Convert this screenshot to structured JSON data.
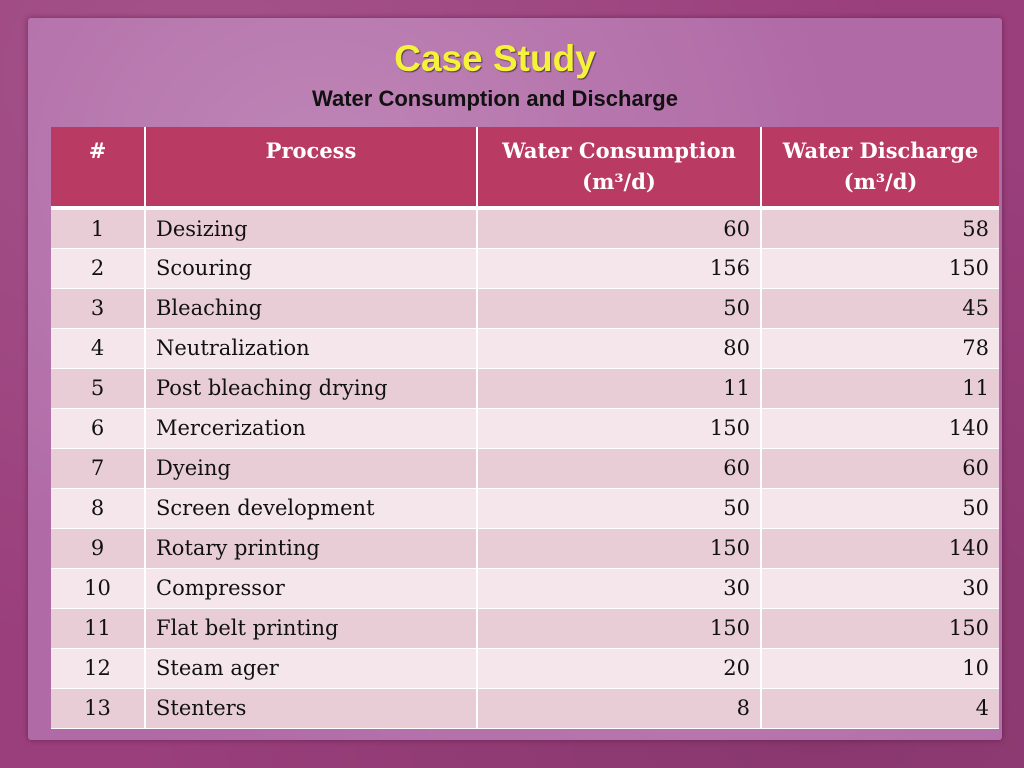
{
  "slide": {
    "title": "Case Study",
    "subtitle": "Water Consumption and Discharge"
  },
  "table": {
    "headers": [
      "#",
      "Process",
      "Water Consumption (m³/d)",
      "Water Discharge (m³/d)"
    ],
    "rows": [
      [
        "1",
        "Desizing",
        "60",
        "58"
      ],
      [
        "2",
        "Scouring",
        "156",
        "150"
      ],
      [
        "3",
        "Bleaching",
        "50",
        "45"
      ],
      [
        "4",
        "Neutralization",
        "80",
        "78"
      ],
      [
        "5",
        "Post bleaching drying",
        "11",
        "11"
      ],
      [
        "6",
        "Mercerization",
        "150",
        "140"
      ],
      [
        "7",
        "Dyeing",
        "60",
        "60"
      ],
      [
        "8",
        "Screen development",
        "50",
        "50"
      ],
      [
        "9",
        "Rotary printing",
        "150",
        "140"
      ],
      [
        "10",
        "Compressor",
        "30",
        "30"
      ],
      [
        "11",
        "Flat belt printing",
        "150",
        "150"
      ],
      [
        "12",
        "Steam ager",
        "20",
        "10"
      ],
      [
        "13",
        "Stenters",
        "8",
        "4"
      ]
    ]
  }
}
